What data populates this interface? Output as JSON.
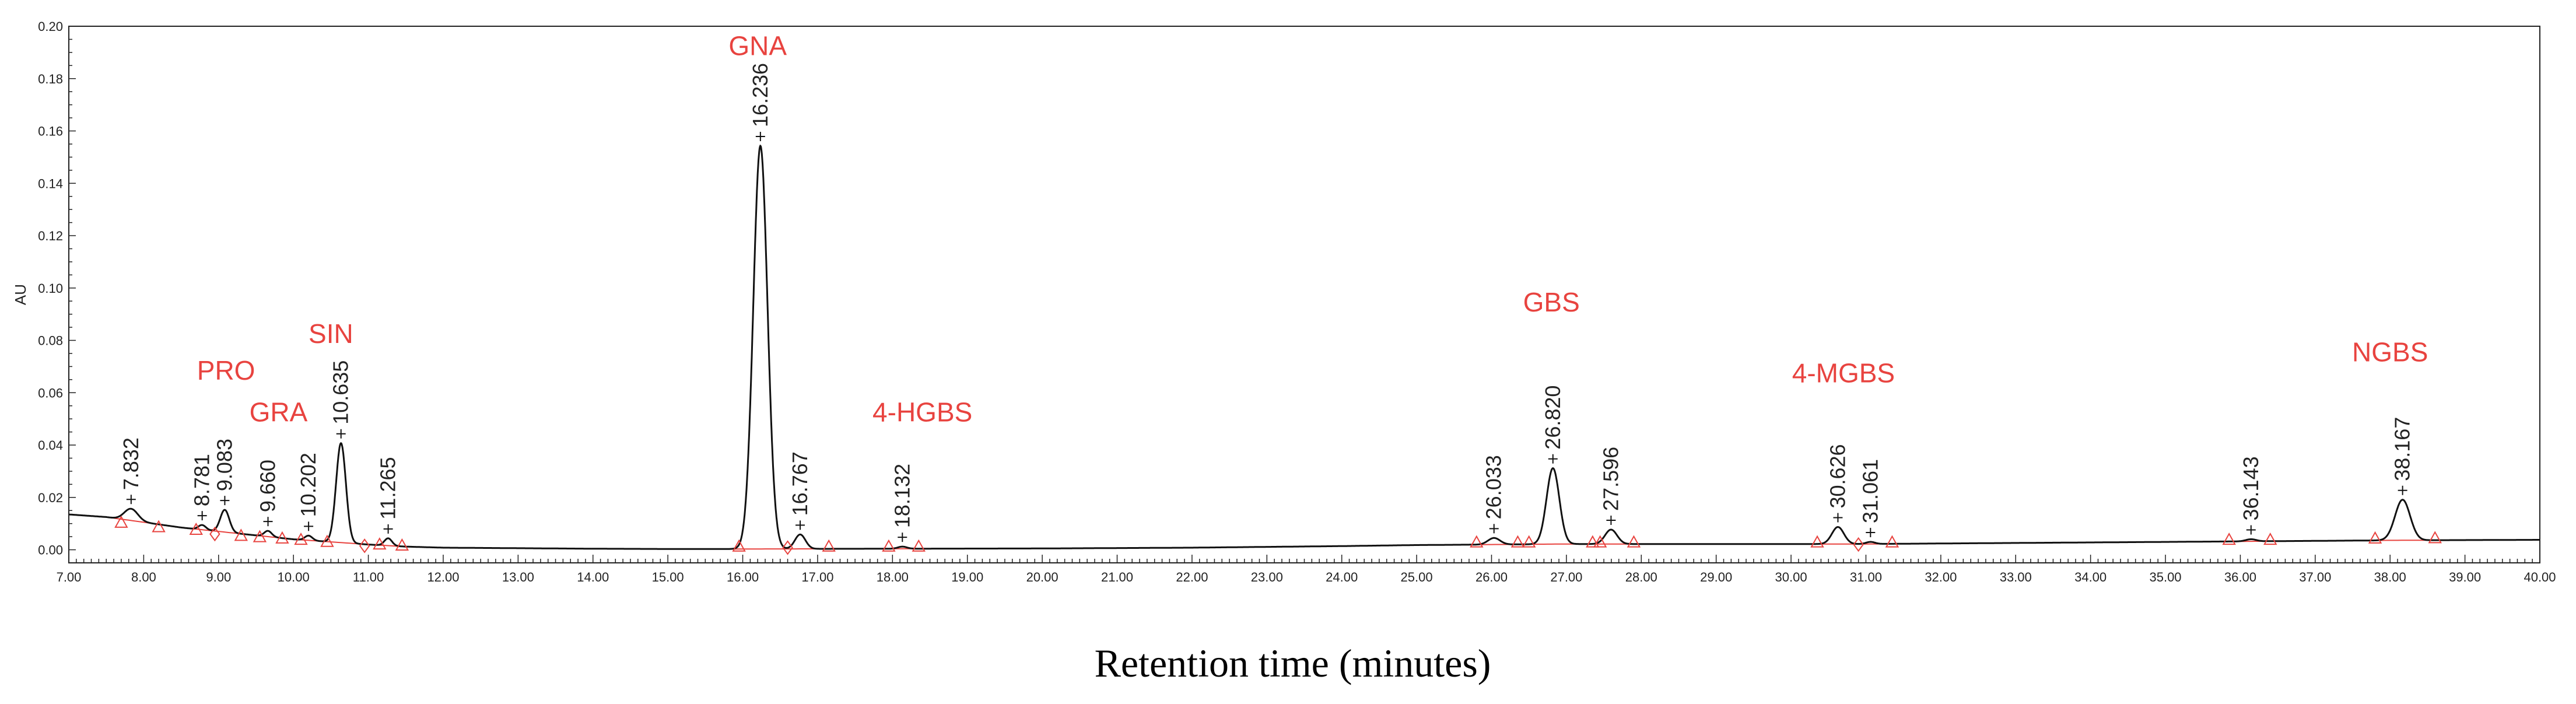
{
  "chart_data": {
    "type": "line",
    "ylabel": "AU",
    "xlabel": "Retention time (minutes)",
    "xlim": [
      7.0,
      40.0
    ],
    "ylim": [
      -0.005,
      0.2
    ],
    "x_ticks": [
      "7.00",
      "8.00",
      "9.00",
      "10.00",
      "11.00",
      "12.00",
      "13.00",
      "14.00",
      "15.00",
      "16.00",
      "17.00",
      "18.00",
      "19.00",
      "20.00",
      "21.00",
      "22.00",
      "23.00",
      "24.00",
      "25.00",
      "26.00",
      "27.00",
      "28.00",
      "29.00",
      "30.00",
      "31.00",
      "32.00",
      "33.00",
      "34.00",
      "35.00",
      "36.00",
      "37.00",
      "38.00",
      "39.00",
      "40.00"
    ],
    "y_ticks": [
      "0.00",
      "0.02",
      "0.04",
      "0.06",
      "0.08",
      "0.10",
      "0.12",
      "0.14",
      "0.16",
      "0.18",
      "0.20"
    ],
    "grid": false,
    "series_color": "#111111",
    "annotation_color": "#e8433f",
    "peaks": [
      {
        "rt": 7.832,
        "label": "7.832",
        "height": 0.0045,
        "width": 0.09
      },
      {
        "rt": 8.781,
        "label": "8.781",
        "height": 0.0018,
        "width": 0.05
      },
      {
        "rt": 9.083,
        "label": "9.083",
        "height": 0.0085,
        "width": 0.06
      },
      {
        "rt": 9.66,
        "label": "9.660",
        "height": 0.0022,
        "width": 0.05
      },
      {
        "rt": 10.202,
        "label": "10.202",
        "height": 0.0018,
        "width": 0.05
      },
      {
        "rt": 10.635,
        "label": "10.635",
        "height": 0.038,
        "width": 0.065
      },
      {
        "rt": 11.265,
        "label": "11.265",
        "height": 0.0028,
        "width": 0.05
      },
      {
        "rt": 16.236,
        "label": "16.236",
        "height": 0.154,
        "width": 0.095
      },
      {
        "rt": 16.767,
        "label": "16.767",
        "height": 0.0055,
        "width": 0.07
      },
      {
        "rt": 18.132,
        "label": "18.132",
        "height": 0.0008,
        "width": 0.06
      },
      {
        "rt": 26.033,
        "label": "26.033",
        "height": 0.0025,
        "width": 0.08
      },
      {
        "rt": 26.82,
        "label": "26.820",
        "height": 0.029,
        "width": 0.085
      },
      {
        "rt": 27.596,
        "label": "27.596",
        "height": 0.0055,
        "width": 0.08
      },
      {
        "rt": 30.626,
        "label": "30.626",
        "height": 0.0065,
        "width": 0.08
      },
      {
        "rt": 31.061,
        "label": "31.061",
        "height": 0.0008,
        "width": 0.06
      },
      {
        "rt": 36.143,
        "label": "36.143",
        "height": 0.0008,
        "width": 0.07
      },
      {
        "rt": 38.167,
        "label": "38.167",
        "height": 0.0155,
        "width": 0.1
      }
    ],
    "baseline": [
      [
        7.0,
        0.0135
      ],
      [
        7.5,
        0.0125
      ],
      [
        8.0,
        0.0105
      ],
      [
        8.5,
        0.0085
      ],
      [
        9.0,
        0.007
      ],
      [
        9.5,
        0.0055
      ],
      [
        10.0,
        0.004
      ],
      [
        10.5,
        0.003
      ],
      [
        11.0,
        0.002
      ],
      [
        11.5,
        0.0012
      ],
      [
        12.0,
        0.0008
      ],
      [
        13.0,
        0.0006
      ],
      [
        14.0,
        0.0004
      ],
      [
        15.0,
        0.0003
      ],
      [
        16.0,
        0.0003
      ],
      [
        18.0,
        0.0004
      ],
      [
        20.0,
        0.0005
      ],
      [
        22.0,
        0.0008
      ],
      [
        24.0,
        0.0014
      ],
      [
        25.0,
        0.0018
      ],
      [
        26.0,
        0.002
      ],
      [
        27.0,
        0.0022
      ],
      [
        28.0,
        0.0022
      ],
      [
        29.0,
        0.0022
      ],
      [
        30.0,
        0.0022
      ],
      [
        31.0,
        0.0022
      ],
      [
        32.0,
        0.0024
      ],
      [
        33.0,
        0.0026
      ],
      [
        34.0,
        0.0028
      ],
      [
        35.0,
        0.003
      ],
      [
        36.0,
        0.0032
      ],
      [
        37.0,
        0.0034
      ],
      [
        38.0,
        0.0036
      ],
      [
        39.0,
        0.0037
      ],
      [
        40.0,
        0.0038
      ]
    ],
    "peak_bounds": [
      {
        "rt": 7.7,
        "y": 0.0095,
        "marker": "triangle"
      },
      {
        "rt": 8.2,
        "y": 0.0078,
        "marker": "triangle"
      },
      {
        "rt": 8.7,
        "y": 0.0068,
        "marker": "triangle"
      },
      {
        "rt": 8.95,
        "y": 0.006,
        "marker": "diamond"
      },
      {
        "rt": 9.3,
        "y": 0.0045,
        "marker": "triangle"
      },
      {
        "rt": 9.55,
        "y": 0.004,
        "marker": "triangle"
      },
      {
        "rt": 9.85,
        "y": 0.0035,
        "marker": "triangle"
      },
      {
        "rt": 10.1,
        "y": 0.003,
        "marker": "triangle"
      },
      {
        "rt": 10.45,
        "y": 0.0022,
        "marker": "triangle"
      },
      {
        "rt": 10.95,
        "y": 0.0015,
        "marker": "diamond"
      },
      {
        "rt": 11.15,
        "y": 0.0012,
        "marker": "triangle"
      },
      {
        "rt": 11.45,
        "y": 0.0008,
        "marker": "triangle"
      },
      {
        "rt": 15.95,
        "y": 0.0004,
        "marker": "triangle"
      },
      {
        "rt": 16.6,
        "y": 0.0008,
        "marker": "diamond"
      },
      {
        "rt": 17.15,
        "y": 0.0004,
        "marker": "triangle"
      },
      {
        "rt": 17.95,
        "y": 0.0004,
        "marker": "triangle"
      },
      {
        "rt": 18.35,
        "y": 0.0004,
        "marker": "triangle"
      },
      {
        "rt": 25.8,
        "y": 0.002,
        "marker": "triangle"
      },
      {
        "rt": 26.35,
        "y": 0.002,
        "marker": "triangle"
      },
      {
        "rt": 26.5,
        "y": 0.002,
        "marker": "triangle"
      },
      {
        "rt": 27.35,
        "y": 0.002,
        "marker": "triangle"
      },
      {
        "rt": 27.45,
        "y": 0.002,
        "marker": "triangle"
      },
      {
        "rt": 27.9,
        "y": 0.002,
        "marker": "triangle"
      },
      {
        "rt": 30.35,
        "y": 0.002,
        "marker": "triangle"
      },
      {
        "rt": 30.9,
        "y": 0.002,
        "marker": "diamond"
      },
      {
        "rt": 31.35,
        "y": 0.002,
        "marker": "triangle"
      },
      {
        "rt": 35.85,
        "y": 0.003,
        "marker": "triangle"
      },
      {
        "rt": 36.4,
        "y": 0.003,
        "marker": "triangle"
      },
      {
        "rt": 37.8,
        "y": 0.0035,
        "marker": "triangle"
      },
      {
        "rt": 38.6,
        "y": 0.0036,
        "marker": "triangle"
      }
    ],
    "compounds": [
      {
        "name": "PRO",
        "x": 9.1,
        "y": 0.065
      },
      {
        "name": "GRA",
        "x": 9.8,
        "y": 0.049
      },
      {
        "name": "SIN",
        "x": 10.5,
        "y": 0.079
      },
      {
        "name": "GNA",
        "x": 16.2,
        "y": 0.189
      },
      {
        "name": "4-HGBS",
        "x": 18.4,
        "y": 0.049
      },
      {
        "name": "GBS",
        "x": 26.8,
        "y": 0.091
      },
      {
        "name": "4-MGBS",
        "x": 30.7,
        "y": 0.064
      },
      {
        "name": "NGBS",
        "x": 38.0,
        "y": 0.072
      }
    ]
  }
}
